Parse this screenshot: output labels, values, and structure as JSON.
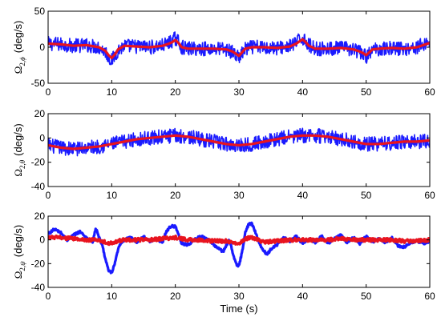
{
  "chart_data": [
    {
      "type": "line",
      "ylabel": {
        "symbol": "Ω",
        "sub1": "2,",
        "sub2": "ϕ",
        "unit": "(deg/s)"
      },
      "xlabel": "",
      "xlim": [
        0,
        60
      ],
      "ylim": [
        -50,
        50
      ],
      "xticks": [
        0,
        10,
        20,
        30,
        40,
        50,
        60
      ],
      "yticks": [
        -50,
        0,
        50
      ],
      "grid": false,
      "series": [
        {
          "color": "#1a1aff",
          "noise": 10,
          "values": [
            [
              0,
              5
            ],
            [
              2,
              4
            ],
            [
              4,
              2
            ],
            [
              6,
              3
            ],
            [
              8,
              0
            ],
            [
              9,
              -6
            ],
            [
              9.5,
              -14
            ],
            [
              10,
              -18
            ],
            [
              10.5,
              -12
            ],
            [
              11,
              -4
            ],
            [
              12,
              2
            ],
            [
              14,
              1
            ],
            [
              16,
              0
            ],
            [
              18,
              2
            ],
            [
              19,
              6
            ],
            [
              19.5,
              9
            ],
            [
              20,
              12
            ],
            [
              20.5,
              8
            ],
            [
              21,
              0
            ],
            [
              22,
              -2
            ],
            [
              24,
              -2
            ],
            [
              26,
              -2
            ],
            [
              28,
              -3
            ],
            [
              29,
              -7
            ],
            [
              29.5,
              -11
            ],
            [
              30,
              -14
            ],
            [
              30.5,
              -9
            ],
            [
              31,
              -3
            ],
            [
              32,
              0
            ],
            [
              34,
              0
            ],
            [
              36,
              -1
            ],
            [
              38,
              1
            ],
            [
              39,
              6
            ],
            [
              39.5,
              10
            ],
            [
              40,
              13
            ],
            [
              40.5,
              9
            ],
            [
              41,
              3
            ],
            [
              42,
              -2
            ],
            [
              44,
              -2
            ],
            [
              46,
              -1
            ],
            [
              48,
              -3
            ],
            [
              49,
              -7
            ],
            [
              49.5,
              -10
            ],
            [
              50,
              -13
            ],
            [
              50.5,
              -9
            ],
            [
              51,
              -4
            ],
            [
              52,
              -2
            ],
            [
              54,
              -1
            ],
            [
              56,
              -2
            ],
            [
              58,
              0
            ],
            [
              59,
              4
            ],
            [
              60,
              7
            ]
          ]
        },
        {
          "color": "#e8141f",
          "noise": 0,
          "values": [
            [
              0,
              5
            ],
            [
              2,
              4
            ],
            [
              4,
              2
            ],
            [
              6,
              3
            ],
            [
              8,
              0
            ],
            [
              9,
              -5
            ],
            [
              9.5,
              -11
            ],
            [
              10,
              -15
            ],
            [
              10.5,
              -10
            ],
            [
              11,
              -3
            ],
            [
              12,
              2
            ],
            [
              14,
              1
            ],
            [
              16,
              0
            ],
            [
              18,
              2
            ],
            [
              19,
              5
            ],
            [
              19.5,
              7
            ],
            [
              20,
              10
            ],
            [
              20.5,
              6
            ],
            [
              21,
              0
            ],
            [
              22,
              -2
            ],
            [
              24,
              -2
            ],
            [
              26,
              -2
            ],
            [
              28,
              -3
            ],
            [
              29,
              -6
            ],
            [
              29.5,
              -9
            ],
            [
              30,
              -12
            ],
            [
              30.5,
              -7
            ],
            [
              31,
              -2
            ],
            [
              32,
              0
            ],
            [
              34,
              0
            ],
            [
              36,
              -1
            ],
            [
              38,
              1
            ],
            [
              39,
              5
            ],
            [
              39.5,
              8
            ],
            [
              40,
              11
            ],
            [
              40.5,
              7
            ],
            [
              41,
              2
            ],
            [
              42,
              -2
            ],
            [
              44,
              -2
            ],
            [
              46,
              -1
            ],
            [
              48,
              -3
            ],
            [
              49,
              -6
            ],
            [
              49.5,
              -8
            ],
            [
              50,
              -11
            ],
            [
              50.5,
              -7
            ],
            [
              51,
              -3
            ],
            [
              52,
              -2
            ],
            [
              54,
              -1
            ],
            [
              56,
              -2
            ],
            [
              58,
              0
            ],
            [
              59,
              3
            ],
            [
              60,
              6
            ]
          ]
        }
      ]
    },
    {
      "type": "line",
      "ylabel": {
        "symbol": "Ω",
        "sub1": "2,",
        "sub2": "θ",
        "unit": "(deg/s)"
      },
      "xlabel": "",
      "xlim": [
        0,
        60
      ],
      "ylim": [
        -40,
        20
      ],
      "xticks": [
        0,
        10,
        20,
        30,
        40,
        50,
        60
      ],
      "yticks": [
        -40,
        -20,
        0,
        20
      ],
      "grid": false,
      "series": [
        {
          "color": "#1a1aff",
          "noise": 6,
          "values": [
            [
              0,
              -6
            ],
            [
              2,
              -8
            ],
            [
              4,
              -9
            ],
            [
              6,
              -8
            ],
            [
              8,
              -7
            ],
            [
              10,
              -5
            ],
            [
              12,
              -3
            ],
            [
              14,
              -1
            ],
            [
              16,
              0
            ],
            [
              18,
              1
            ],
            [
              20,
              2
            ],
            [
              22,
              1
            ],
            [
              24,
              -1
            ],
            [
              26,
              -3
            ],
            [
              28,
              -5
            ],
            [
              30,
              -6
            ],
            [
              32,
              -5
            ],
            [
              34,
              -3
            ],
            [
              36,
              -1
            ],
            [
              38,
              1
            ],
            [
              40,
              2
            ],
            [
              42,
              2
            ],
            [
              44,
              1
            ],
            [
              46,
              -1
            ],
            [
              48,
              -3
            ],
            [
              50,
              -5
            ],
            [
              52,
              -5
            ],
            [
              54,
              -4
            ],
            [
              56,
              -3
            ],
            [
              58,
              -3
            ],
            [
              60,
              -2
            ]
          ]
        },
        {
          "color": "#e8141f",
          "noise": 0,
          "values": [
            [
              0,
              -6
            ],
            [
              2,
              -8
            ],
            [
              4,
              -9
            ],
            [
              6,
              -8
            ],
            [
              8,
              -7
            ],
            [
              10,
              -5
            ],
            [
              12,
              -3
            ],
            [
              14,
              -1
            ],
            [
              16,
              0
            ],
            [
              18,
              1
            ],
            [
              20,
              2
            ],
            [
              22,
              1
            ],
            [
              24,
              -1
            ],
            [
              26,
              -3
            ],
            [
              28,
              -5
            ],
            [
              30,
              -6
            ],
            [
              32,
              -5
            ],
            [
              34,
              -3
            ],
            [
              36,
              -1
            ],
            [
              38,
              1
            ],
            [
              40,
              2
            ],
            [
              42,
              2
            ],
            [
              44,
              1
            ],
            [
              46,
              -1
            ],
            [
              48,
              -3
            ],
            [
              50,
              -5
            ],
            [
              52,
              -5
            ],
            [
              54,
              -4
            ],
            [
              56,
              -3
            ],
            [
              58,
              -3
            ],
            [
              60,
              -2
            ]
          ]
        }
      ]
    },
    {
      "type": "line",
      "ylabel": {
        "symbol": "Ω",
        "sub1": "2,",
        "sub2": "ψ",
        "unit": "(deg/s)"
      },
      "xlabel": "Time (s)",
      "xlim": [
        0,
        60
      ],
      "ylim": [
        -40,
        20
      ],
      "xticks": [
        0,
        10,
        20,
        30,
        40,
        50,
        60
      ],
      "yticks": [
        -40,
        -20,
        0,
        20
      ],
      "grid": false,
      "series": [
        {
          "color": "#1a1aff",
          "noise": 1,
          "values": [
            [
              0,
              5
            ],
            [
              1,
              9
            ],
            [
              2,
              6
            ],
            [
              3,
              0
            ],
            [
              4,
              4
            ],
            [
              5,
              7
            ],
            [
              6,
              2
            ],
            [
              7,
              -2
            ],
            [
              7.5,
              10
            ],
            [
              8,
              2
            ],
            [
              8.5,
              -4
            ],
            [
              9,
              -16
            ],
            [
              9.5,
              -26
            ],
            [
              10,
              -28
            ],
            [
              10.5,
              -20
            ],
            [
              11,
              -8
            ],
            [
              11.5,
              -2
            ],
            [
              12,
              0
            ],
            [
              13,
              2
            ],
            [
              14,
              -2
            ],
            [
              15,
              3
            ],
            [
              16,
              -1
            ],
            [
              17,
              1
            ],
            [
              18,
              -2
            ],
            [
              18.5,
              6
            ],
            [
              19,
              10
            ],
            [
              19.5,
              12
            ],
            [
              20,
              11
            ],
            [
              20.5,
              5
            ],
            [
              21,
              -3
            ],
            [
              22,
              -4
            ],
            [
              23,
              0
            ],
            [
              24,
              3
            ],
            [
              25,
              1
            ],
            [
              26,
              -4
            ],
            [
              27,
              -8
            ],
            [
              27.5,
              -10
            ],
            [
              28,
              -5
            ],
            [
              28.5,
              0
            ],
            [
              29,
              -10
            ],
            [
              29.5,
              -20
            ],
            [
              30,
              -22
            ],
            [
              30.5,
              -10
            ],
            [
              31,
              6
            ],
            [
              31.5,
              13
            ],
            [
              32,
              14
            ],
            [
              32.5,
              8
            ],
            [
              33,
              0
            ],
            [
              33.5,
              -6
            ],
            [
              34,
              -10
            ],
            [
              34.5,
              -12
            ],
            [
              35,
              -8
            ],
            [
              36,
              -4
            ],
            [
              37,
              2
            ],
            [
              38,
              -1
            ],
            [
              39,
              3
            ],
            [
              40,
              -3
            ],
            [
              41,
              1
            ],
            [
              42,
              -2
            ],
            [
              43,
              3
            ],
            [
              44,
              -3
            ],
            [
              45,
              1
            ],
            [
              46,
              4
            ],
            [
              47,
              -2
            ],
            [
              48,
              2
            ],
            [
              49,
              -3
            ],
            [
              50,
              3
            ],
            [
              51,
              -2
            ],
            [
              52,
              1
            ],
            [
              53,
              -2
            ],
            [
              54,
              2
            ],
            [
              55,
              -5
            ],
            [
              56,
              -6
            ],
            [
              57,
              -2
            ],
            [
              58,
              -1
            ],
            [
              59,
              -3
            ],
            [
              60,
              -1
            ]
          ]
        },
        {
          "color": "#e8141f",
          "noise": 1.5,
          "values": [
            [
              0,
              2
            ],
            [
              2,
              2
            ],
            [
              4,
              1
            ],
            [
              6,
              0
            ],
            [
              8,
              0
            ],
            [
              9,
              -2
            ],
            [
              10,
              -3
            ],
            [
              11,
              -1
            ],
            [
              12,
              0
            ],
            [
              14,
              0
            ],
            [
              16,
              0
            ],
            [
              18,
              1
            ],
            [
              20,
              2
            ],
            [
              22,
              0
            ],
            [
              24,
              0
            ],
            [
              26,
              -1
            ],
            [
              28,
              -1
            ],
            [
              29,
              -2
            ],
            [
              30,
              -3
            ],
            [
              31,
              1
            ],
            [
              32,
              2
            ],
            [
              33,
              0
            ],
            [
              34,
              -2
            ],
            [
              36,
              -1
            ],
            [
              38,
              0
            ],
            [
              40,
              0
            ],
            [
              42,
              0
            ],
            [
              44,
              0
            ],
            [
              46,
              1
            ],
            [
              48,
              0
            ],
            [
              50,
              0
            ],
            [
              52,
              0
            ],
            [
              54,
              0
            ],
            [
              56,
              -1
            ],
            [
              58,
              -1
            ],
            [
              60,
              0
            ]
          ]
        }
      ]
    }
  ]
}
